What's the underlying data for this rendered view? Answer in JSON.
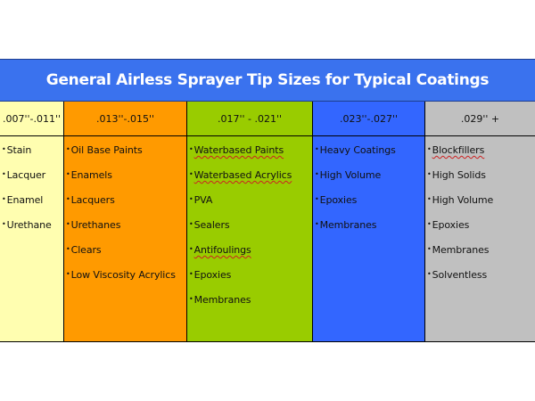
{
  "title": "General Airless Sprayer Tip Sizes for Typical Coatings",
  "colors": {
    "title_bg": "#3a72ee",
    "col1": "#fffeb0",
    "col2": "#ff9a00",
    "col3": "#99cc00",
    "col4": "#3366ff",
    "col5": "#c0c0c0"
  },
  "columns": [
    {
      "header": ".007''-.011''",
      "items": [
        "Stain",
        "Lacquer",
        "Enamel",
        "Urethane"
      ]
    },
    {
      "header": ".013''-.015''",
      "items": [
        "Oil Base Paints",
        "Enamels",
        "Lacquers",
        "Urethanes",
        "Clears",
        "Low Viscosity Acrylics"
      ]
    },
    {
      "header": ".017'' - .021''",
      "items": [
        "Waterbased Paints",
        "Waterbased Acrylics",
        "PVA",
        "Sealers",
        "Antifoulings",
        "Epoxies",
        "Membranes"
      ]
    },
    {
      "header": ".023''-.027''",
      "items": [
        "Heavy Coatings",
        "High Volume",
        "Epoxies",
        "Membranes"
      ]
    },
    {
      "header": ".029'' +",
      "items": [
        "Blockfillers",
        "High Solids",
        "High Volume",
        "Epoxies",
        "Membranes",
        "Solventless"
      ]
    }
  ]
}
